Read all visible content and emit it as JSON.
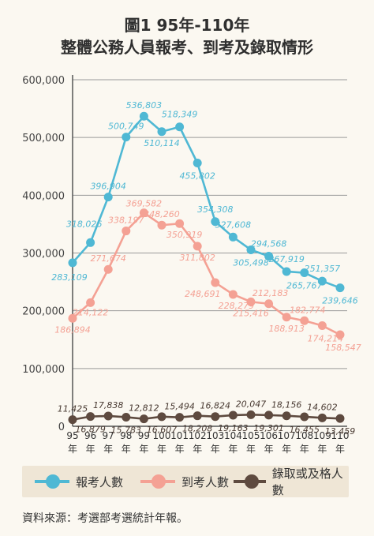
{
  "title": {
    "line1": "圖1  95年-110年",
    "line2": "整體公務人員報考、到考及錄取情形"
  },
  "legend": {
    "applicants": "報考人數",
    "examinees": "到考人數",
    "admitted": "錄取或及格人數"
  },
  "source": "資料來源：考選部考選統計年報。",
  "colors": {
    "applicants": "#4fb8d4",
    "examinees": "#f4a194",
    "admitted": "#5e4a3f",
    "axis": "#555555",
    "grid": "#9a9a9a"
  },
  "chart_data": {
    "type": "line",
    "x": [
      "95年",
      "96年",
      "97年",
      "98年",
      "99年",
      "100年",
      "101年",
      "102年",
      "103年",
      "104年",
      "105年",
      "106年",
      "107年",
      "108年",
      "109年",
      "110年"
    ],
    "x_ticks": [
      {
        "num": "95",
        "unit": "年"
      },
      {
        "num": "96",
        "unit": "年"
      },
      {
        "num": "97",
        "unit": "年"
      },
      {
        "num": "98",
        "unit": "年"
      },
      {
        "num": "99",
        "unit": "年"
      },
      {
        "num": "100",
        "unit": "年"
      },
      {
        "num": "101",
        "unit": "年"
      },
      {
        "num": "102",
        "unit": "年"
      },
      {
        "num": "103",
        "unit": "年"
      },
      {
        "num": "104",
        "unit": "年"
      },
      {
        "num": "105",
        "unit": "年"
      },
      {
        "num": "106",
        "unit": "年"
      },
      {
        "num": "107",
        "unit": "年"
      },
      {
        "num": "108",
        "unit": "年"
      },
      {
        "num": "109",
        "unit": "年"
      },
      {
        "num": "110",
        "unit": "年"
      }
    ],
    "ylim": [
      0,
      600000
    ],
    "y_ticks": [
      0,
      100000,
      200000,
      300000,
      400000,
      500000,
      600000
    ],
    "y_tick_labels": [
      "0",
      "100,000",
      "200,000",
      "300,000",
      "400,000",
      "500,000",
      "600,000"
    ],
    "grid": "horizontal",
    "legend_position": "bottom",
    "series": [
      {
        "key": "applicants",
        "name": "報考人數",
        "values": [
          283109,
          318026,
          396904,
          500749,
          536803,
          510114,
          518349,
          455802,
          354308,
          327608,
          305498,
          294568,
          267919,
          265767,
          251357,
          239646
        ],
        "labels": [
          "283,109",
          "318,026",
          "396,904",
          "500,749",
          "536,803",
          "510,114",
          "518,349",
          "455,802",
          "354,308",
          "327,608",
          "305,498",
          "294,568",
          "267,919",
          "265,767",
          "251,357",
          "239,646"
        ]
      },
      {
        "key": "examinees",
        "name": "到考人數",
        "values": [
          186894,
          214122,
          271674,
          338197,
          369582,
          348260,
          350919,
          311802,
          248691,
          228279,
          215416,
          212183,
          188913,
          182774,
          174214,
          158547
        ],
        "labels": [
          "186,894",
          "214,122",
          "271,674",
          "338,197",
          "369,582",
          "348,260",
          "350,919",
          "311,802",
          "248,691",
          "228,279",
          "215,416",
          "212,183",
          "188,913",
          "182,774",
          "174,214",
          "158,547"
        ]
      },
      {
        "key": "admitted",
        "name": "錄取或及格人數",
        "values": [
          11425,
          16879,
          17838,
          15783,
          12812,
          16607,
          15494,
          18208,
          16824,
          19163,
          20047,
          19301,
          18156,
          16455,
          14602,
          13459
        ],
        "labels": [
          "11,425",
          "16,879",
          "17,838",
          "15,783",
          "12,812",
          "16,607",
          "15,494",
          "18,208",
          "16,824",
          "19,163",
          "20,047",
          "19,301",
          "18,156",
          "16,455",
          "14,602",
          "13,459"
        ]
      }
    ]
  }
}
